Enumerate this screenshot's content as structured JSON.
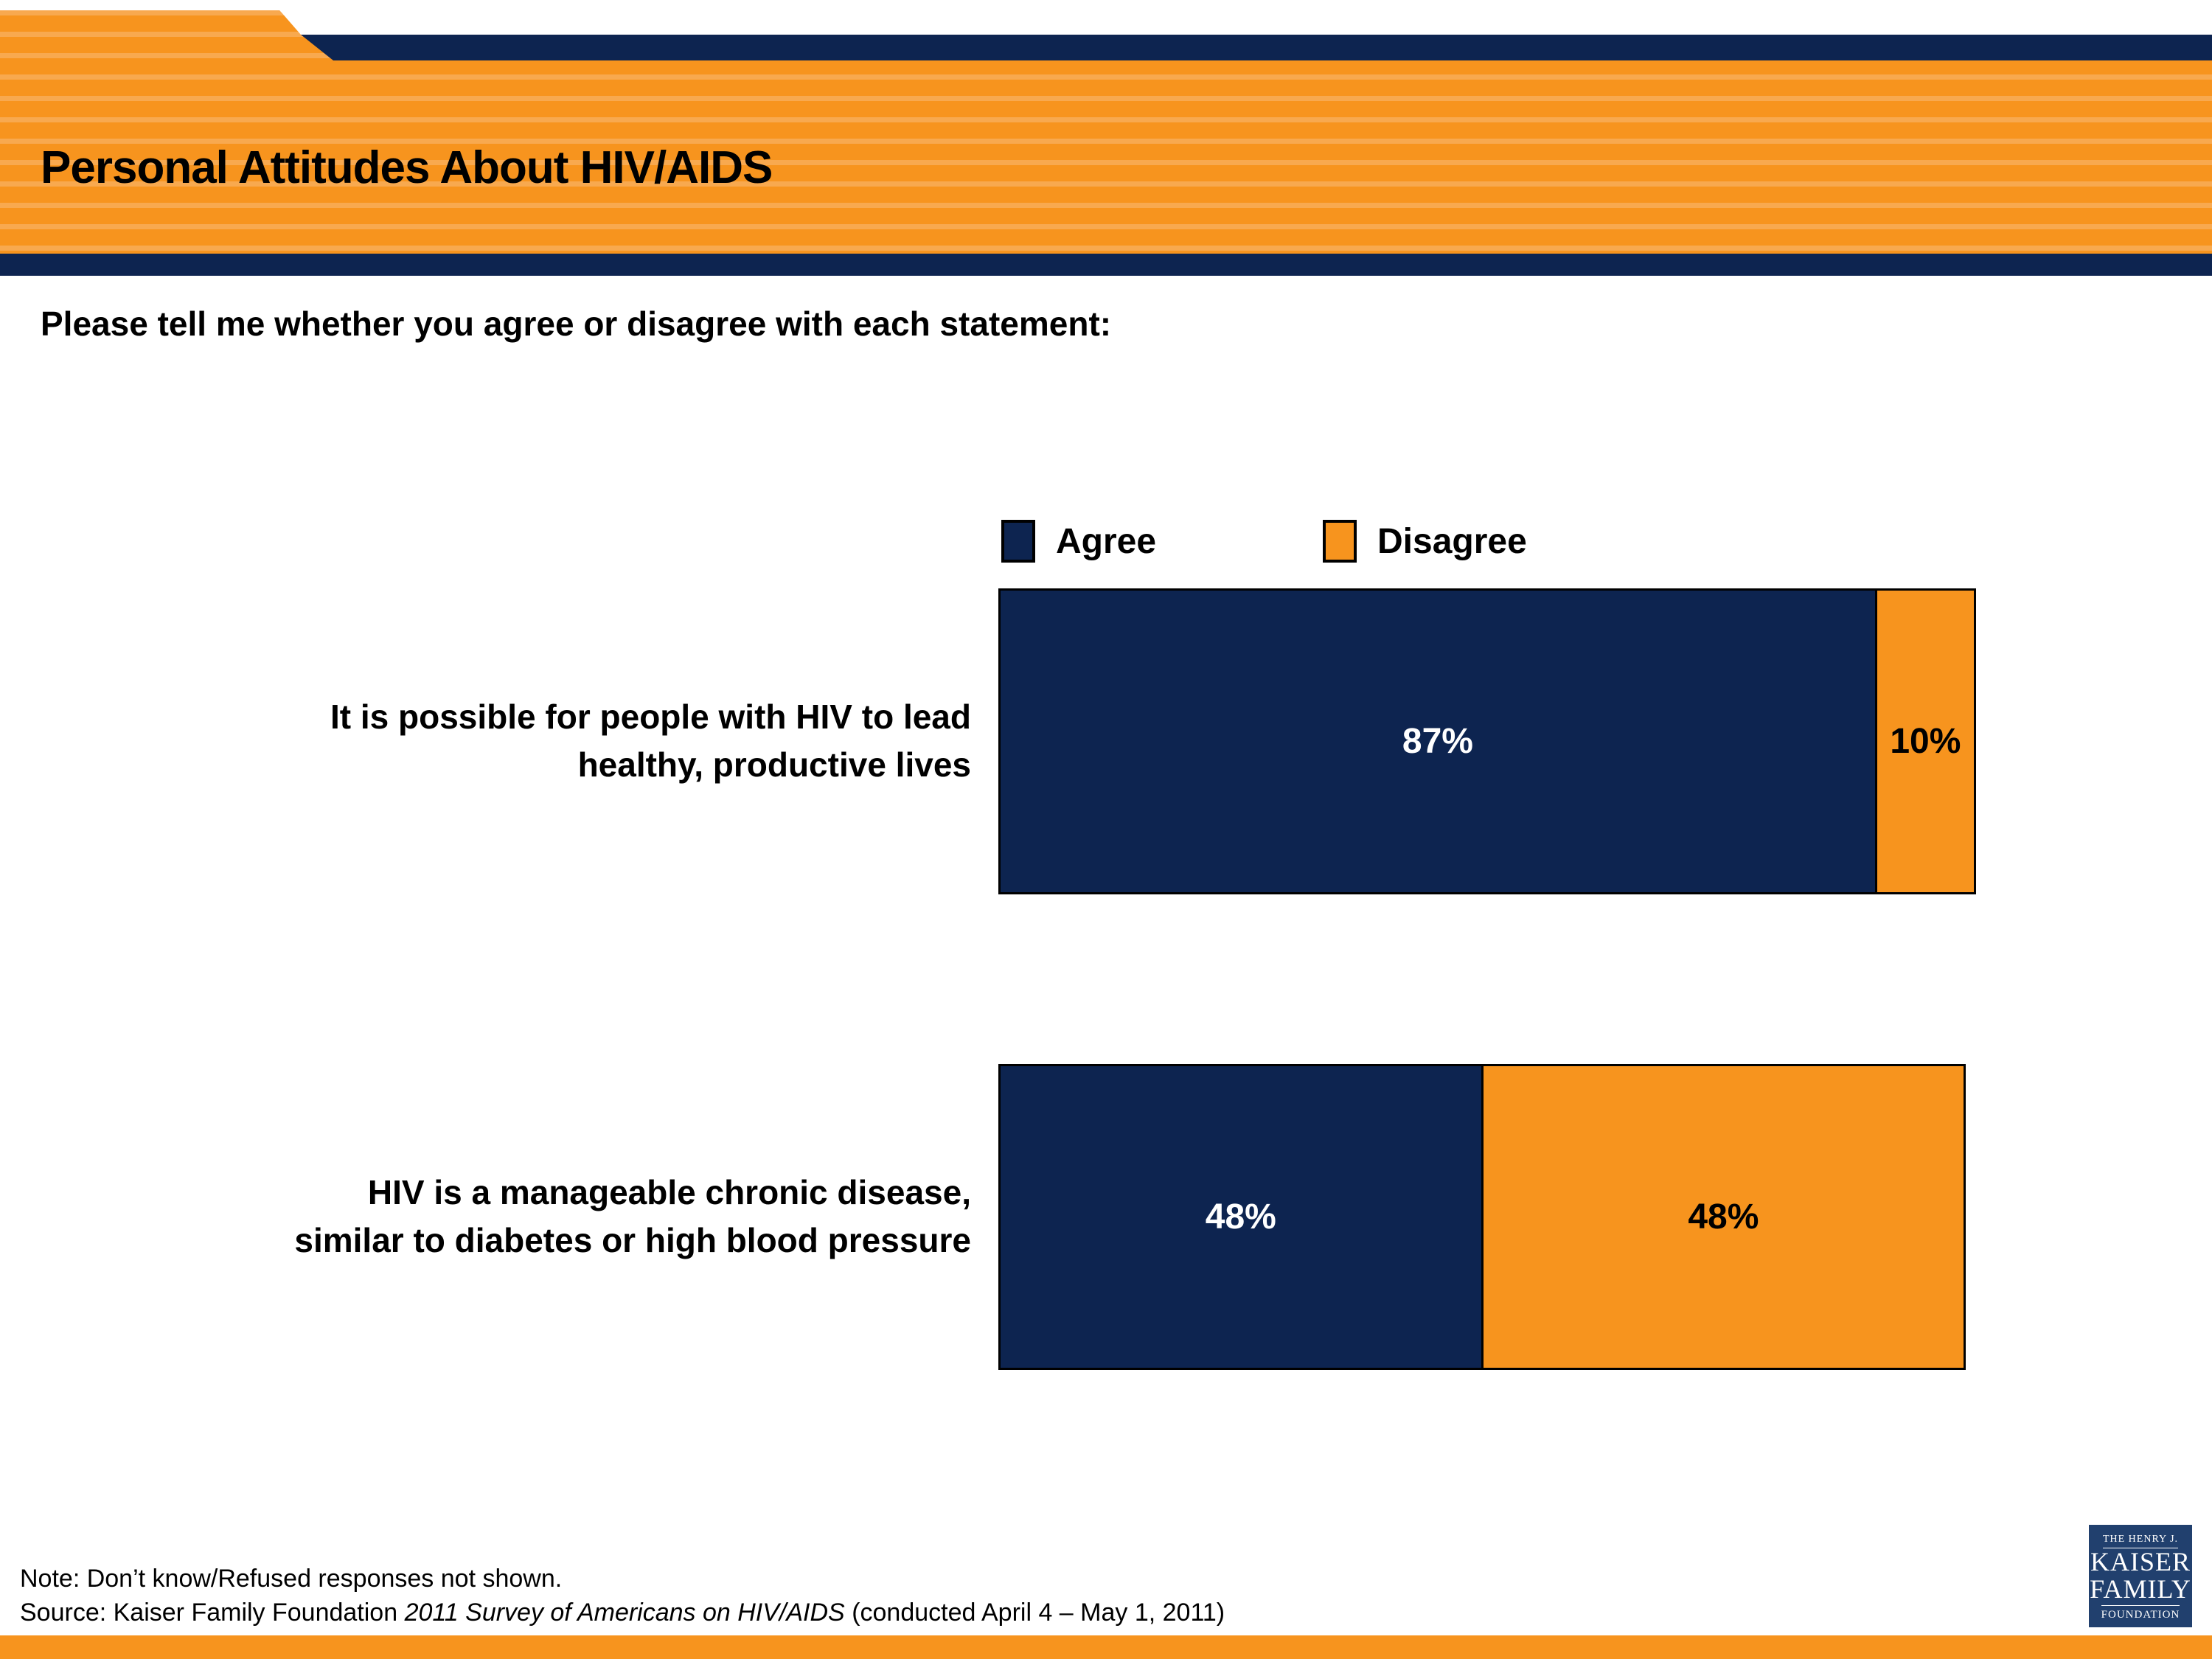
{
  "slide": {
    "title": "Personal Attitudes About HIV/AIDS",
    "subtitle": "Please tell me whether you agree or disagree with each statement:",
    "note": "Note: Don’t know/Refused responses not shown.",
    "source_prefix": "Source: Kaiser Family Foundation ",
    "source_italic": "2011 Survey of Americans on HIV/AIDS",
    "source_suffix": " (conducted April 4 – May 1, 2011)"
  },
  "colors": {
    "navy": "#0D2450",
    "orange": "#F7941E",
    "stripe_light": "#F8A94F",
    "logo_navy": "#21406E"
  },
  "legend": {
    "items": [
      {
        "label": "Agree"
      },
      {
        "label": "Disagree"
      }
    ]
  },
  "chart_data": {
    "type": "bar",
    "orientation": "horizontal-stacked",
    "unit": "percent",
    "xlim": [
      0,
      100
    ],
    "grid": false,
    "legend_position": "top",
    "categories": [
      "It is possible for people with HIV to lead healthy, productive lives",
      "HIV is a manageable chronic disease, similar to diabetes or high blood pressure"
    ],
    "category_lines": [
      [
        "It is possible for people with HIV to lead",
        "healthy, productive lives"
      ],
      [
        "HIV is a manageable chronic disease,",
        "similar to diabetes or high blood pressure"
      ]
    ],
    "series": [
      {
        "name": "Agree",
        "values": [
          87,
          48
        ]
      },
      {
        "name": "Disagree",
        "values": [
          10,
          48
        ]
      }
    ],
    "value_labels": [
      [
        "87%",
        "10%"
      ],
      [
        "48%",
        "48%"
      ]
    ]
  },
  "logo": {
    "line1": "THE HENRY J.",
    "line2": "KAISER",
    "line3": "FAMILY",
    "line4": "FOUNDATION"
  }
}
